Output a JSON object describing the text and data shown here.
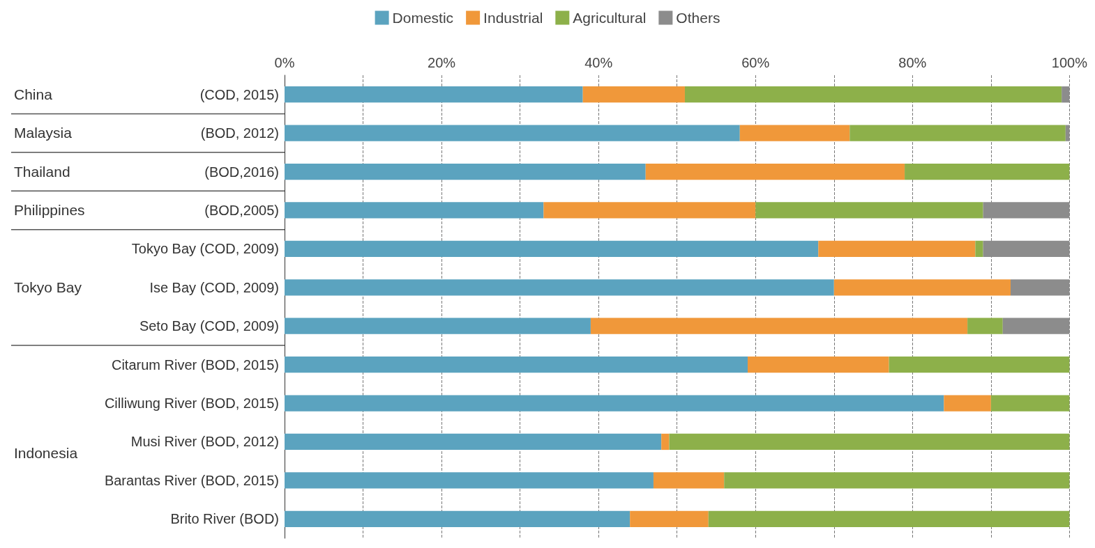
{
  "chart_data": {
    "type": "bar",
    "orientation": "horizontal",
    "stacked": true,
    "categories": [
      "(COD, 2015)",
      "(BOD, 2012)",
      "(BOD,2016)",
      "(BOD,2005)",
      "Tokyo Bay (COD, 2009)",
      "Ise Bay (COD, 2009)",
      "Seto Bay (COD, 2009)",
      "Citarum River (BOD, 2015)",
      "Cilliwung River (BOD, 2015)",
      "Musi River (BOD, 2012)",
      "Barantas River (BOD, 2015)",
      "Brito River (BOD)"
    ],
    "series": [
      {
        "name": "Domestic",
        "color": "#5ba3bf",
        "values": [
          38,
          58,
          46,
          33,
          68,
          70,
          39,
          59,
          84,
          48,
          47,
          44
        ]
      },
      {
        "name": "Industrial",
        "color": "#f0983a",
        "values": [
          13,
          14,
          33,
          27,
          20,
          22.5,
          48,
          18,
          6,
          1,
          9,
          10
        ]
      },
      {
        "name": "Agricultural",
        "color": "#8db04a",
        "values": [
          48,
          27.5,
          21,
          29,
          1,
          0,
          4.5,
          23,
          10,
          51,
          44,
          46
        ]
      },
      {
        "name": "Others",
        "color": "#8c8c8c",
        "values": [
          1,
          0.5,
          0,
          11,
          11,
          7.5,
          8.5,
          0,
          0,
          0,
          0,
          0
        ]
      }
    ],
    "xlim": [
      0,
      100
    ],
    "xticks": [
      {
        "value": 0,
        "label": "0%"
      },
      {
        "value": 10,
        "label": null
      },
      {
        "value": 20,
        "label": "20%"
      },
      {
        "value": 30,
        "label": null
      },
      {
        "value": 40,
        "label": "40%"
      },
      {
        "value": 50,
        "label": null
      },
      {
        "value": 60,
        "label": "60%"
      },
      {
        "value": 70,
        "label": null
      },
      {
        "value": 80,
        "label": "80%"
      },
      {
        "value": 90,
        "label": null
      },
      {
        "value": 100,
        "label": "100%"
      }
    ],
    "grid": "x",
    "legend": "top",
    "annotations": [
      "China",
      "Malaysia",
      "Thailand",
      "Philippines",
      "Tokyo Bay",
      "Indonesia"
    ]
  }
}
